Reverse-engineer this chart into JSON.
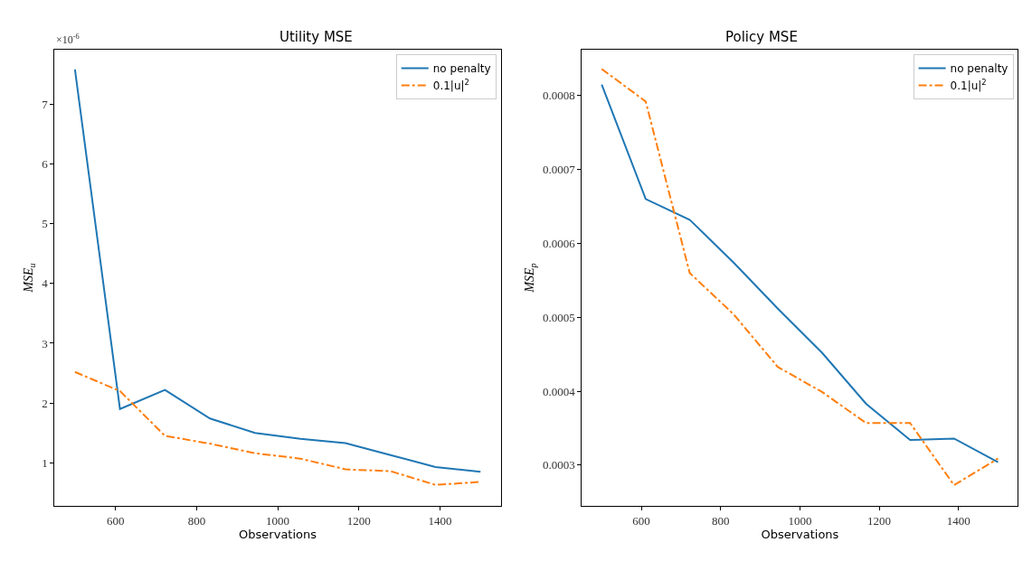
{
  "chart_data": [
    {
      "type": "line",
      "title": "Utility MSE",
      "xlabel": "Observations",
      "ylabel": "MSE$_{u}$",
      "annotations": [
        "×10$^{-6}$"
      ],
      "x": [
        500,
        611,
        722,
        833,
        944,
        1056,
        1167,
        1278,
        1389,
        1500
      ],
      "series": [
        {
          "name": "no penalty",
          "color": "#1f77b4",
          "line_style": "solid",
          "values": [
            7.58,
            1.9,
            2.22,
            1.74,
            1.5,
            1.4,
            1.33,
            1.13,
            0.93,
            0.85
          ]
        },
        {
          "name": "0.1|u|$^{2}$",
          "color": "#ff7f0e",
          "line_style": "dashdot",
          "values": [
            2.52,
            2.2,
            1.45,
            1.32,
            1.16,
            1.07,
            0.89,
            0.86,
            0.63,
            0.68
          ]
        }
      ],
      "xlim": [
        450,
        1550
      ],
      "xticks": [
        600,
        800,
        1000,
        1200,
        1400
      ],
      "ylim": [
        0.28,
        7.91
      ],
      "yticks": [
        1,
        2,
        3,
        4,
        5,
        6,
        7
      ],
      "legend": "top right",
      "marker": "none"
    },
    {
      "type": "line",
      "title": "Policy MSE",
      "xlabel": "Observations",
      "ylabel": "MSE$_{p}$",
      "x": [
        500,
        611,
        722,
        833,
        944,
        1056,
        1167,
        1278,
        1389,
        1500
      ],
      "series": [
        {
          "name": "no penalty",
          "color": "#1f77b4",
          "line_style": "solid",
          "values": [
            0.000815,
            0.00066,
            0.000632,
            0.000574,
            0.000512,
            0.000452,
            0.000383,
            0.000334,
            0.000336,
            0.000304
          ]
        },
        {
          "name": "0.1|u|$^{2}$",
          "color": "#ff7f0e",
          "line_style": "dashdot",
          "values": [
            0.000836,
            0.000792,
            0.00056,
            0.000504,
            0.000433,
            0.000399,
            0.000357,
            0.000357,
            0.000273,
            0.000309
          ]
        }
      ],
      "xlim": [
        450,
        1550
      ],
      "xticks": [
        600,
        800,
        1000,
        1200,
        1400
      ],
      "ylim": [
        0.000245,
        0.000862
      ],
      "yticks": [
        0.0003,
        0.0004,
        0.0005,
        0.0006,
        0.0007,
        0.0008
      ],
      "legend": "top right",
      "marker": "none"
    }
  ]
}
